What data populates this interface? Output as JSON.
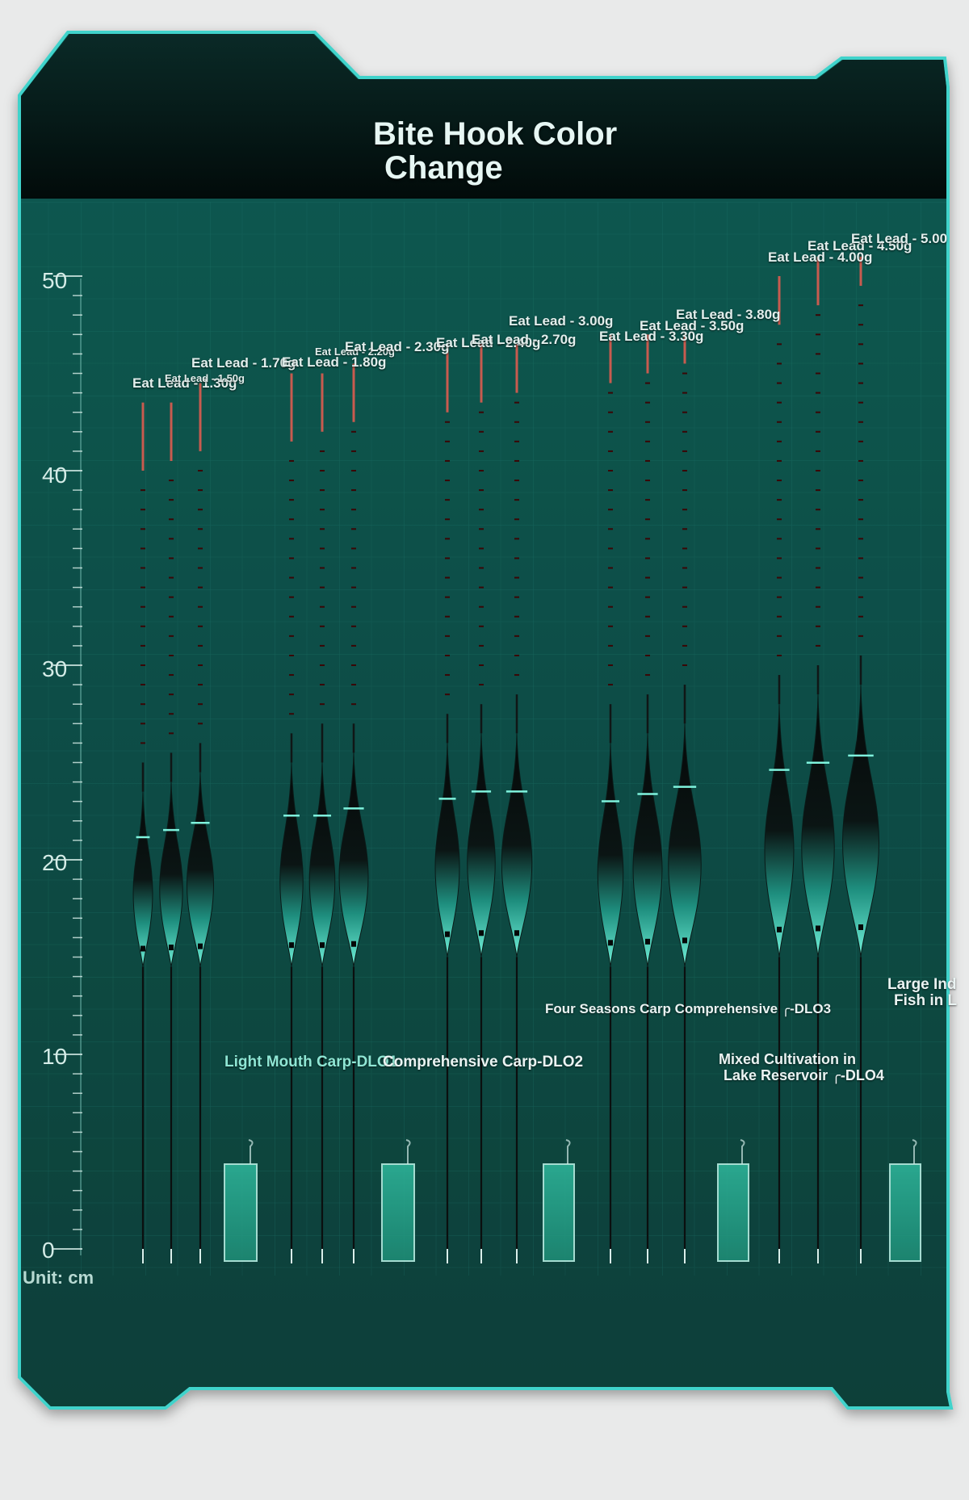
{
  "title": {
    "line1": "Bite Hook Color",
    "line2": "Change"
  },
  "unit_label": "Unit: cm",
  "axis": {
    "tick_labels": [
      "50",
      "40",
      "30",
      "20",
      "10",
      "0"
    ]
  },
  "colors": {
    "panel": "#0d4b45",
    "header": "#041513",
    "frame": "#3fd3cb",
    "tip_red": "#e8232b",
    "body_teal": "#38d1b4",
    "series_label_teal": "#8fe6d4"
  },
  "series": [
    {
      "label": "Light Mouth Carp-DLO1",
      "leads": [
        "Eat Lead - 1.30g",
        "Eat Lead - 1.50g",
        "Eat Lead - 1.70g"
      ]
    },
    {
      "label": "Comprehensive Carp-DLO2",
      "leads": [
        "Eat Lead - 1.80g",
        "Eat Lead - 2.20g",
        "Eat Lead - 2.30g"
      ]
    },
    {
      "label": "Comprehensive Carp-DLO2",
      "leads": [
        "Eat Lead - 2.40g",
        "Eat Lead - 2.70g",
        "Eat Lead - 3.00g"
      ]
    },
    {
      "label": "Four Seasons Carp Comprehensive ╭-DLO3",
      "leads": [
        "Eat Lead - 3.30g",
        "Eat Lead - 3.50g",
        "Eat Lead - 3.80g"
      ]
    },
    {
      "label_line1": "Mixed Cultivation in",
      "label_line2": "Lake Reservoir ╭-DLO4",
      "leads": [
        "Eat Lead - 4.00g",
        "Eat Lead - 4.50g",
        "Eat Lead - 5.00"
      ]
    },
    {
      "label_line1": "Large Ind",
      "label_line2": "Fish in L"
    }
  ],
  "floats_cm": [
    {
      "top": 43.5,
      "red_top": 40,
      "red_bottom": 25,
      "body_top": 23.5,
      "body_bottom": 14.5
    },
    {
      "top": 43.5,
      "red_top": 40.5,
      "red_bottom": 25.5,
      "body_top": 24,
      "body_bottom": 14.5
    },
    {
      "top": 44.5,
      "red_top": 41,
      "red_bottom": 26,
      "body_top": 24.5,
      "body_bottom": 14.5
    },
    {
      "top": 45,
      "red_top": 41.5,
      "red_bottom": 26.5,
      "body_top": 25,
      "body_bottom": 14.5
    },
    {
      "top": 45,
      "red_top": 42,
      "red_bottom": 27,
      "body_top": 25,
      "body_bottom": 14.5
    },
    {
      "top": 45.5,
      "red_top": 42.5,
      "red_bottom": 27,
      "body_top": 25.5,
      "body_bottom": 14.5
    },
    {
      "top": 46.5,
      "red_top": 43,
      "red_bottom": 27.5,
      "body_top": 26,
      "body_bottom": 15
    },
    {
      "top": 46.5,
      "red_top": 43.5,
      "red_bottom": 28,
      "body_top": 26.5,
      "body_bottom": 15
    },
    {
      "top": 46.5,
      "red_top": 44,
      "red_bottom": 28.5,
      "body_top": 26.5,
      "body_bottom": 15
    },
    {
      "top": 47,
      "red_top": 44.5,
      "red_bottom": 28,
      "body_top": 26,
      "body_bottom": 14.5
    },
    {
      "top": 47,
      "red_top": 45,
      "red_bottom": 28.5,
      "body_top": 26.5,
      "body_bottom": 14.5
    },
    {
      "top": 47,
      "red_top": 45.5,
      "red_bottom": 29,
      "body_top": 27,
      "body_bottom": 14.5
    },
    {
      "top": 50,
      "red_top": 47.5,
      "red_bottom": 29.5,
      "body_top": 28,
      "body_bottom": 15
    },
    {
      "top": 51,
      "red_top": 48.5,
      "red_bottom": 30,
      "body_top": 28.5,
      "body_bottom": 15
    },
    {
      "top": 51,
      "red_top": 49.5,
      "red_bottom": 30.5,
      "body_top": 29,
      "body_bottom": 15
    }
  ]
}
